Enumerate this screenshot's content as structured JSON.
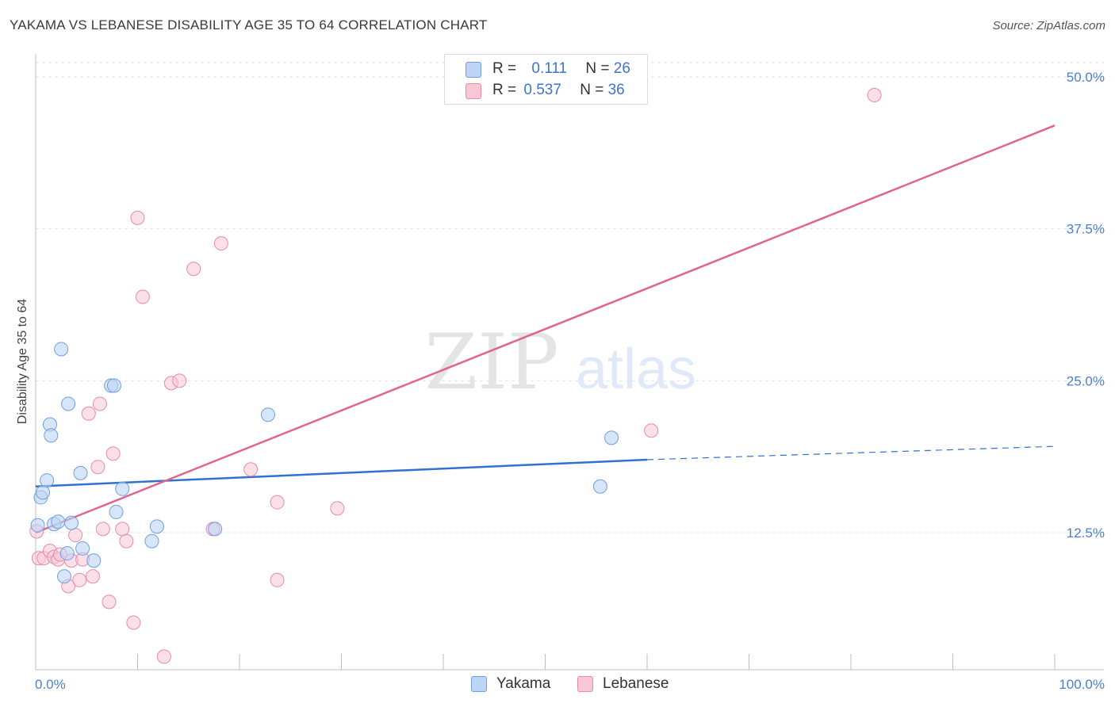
{
  "title": "YAKAMA VS LEBANESE DISABILITY AGE 35 TO 64 CORRELATION CHART",
  "source": "Source: ZipAtlas.com",
  "watermark": {
    "zip": "ZIP",
    "atlas": "atlas"
  },
  "legend": {
    "rows": [
      {
        "r_label": "R =",
        "r_value": "0.111",
        "n_label": "N =",
        "n_value": "26",
        "color": "#aecbf2"
      },
      {
        "r_label": "R =",
        "r_value": "0.537",
        "n_label": "N =",
        "n_value": "36",
        "color": "#f7b6cb"
      }
    ]
  },
  "bottom_legend": [
    {
      "label": "Yakama",
      "color": "#aecbf2"
    },
    {
      "label": "Lebanese",
      "color": "#f7b6cb"
    }
  ],
  "colors": {
    "yakama_fill": "#bcd4f5",
    "yakama_stroke": "#6f9fdf",
    "yakama_line": "#2f72d0",
    "lebanese_fill": "#f9c6d6",
    "lebanese_stroke": "#e88aa9",
    "lebanese_line": "#e0648c",
    "grid": "#e2e2e2",
    "tick_text": "#4a7fd0"
  },
  "chart_data": {
    "type": "scatter",
    "title": "YAKAMA VS LEBANESE DISABILITY AGE 35 TO 64 CORRELATION CHART",
    "xlabel": "",
    "ylabel": "Disability Age 35 to 64",
    "xlim": [
      0,
      100
    ],
    "ylim": [
      0,
      52
    ],
    "x_tick_labels": [
      "0.0%",
      "100.0%"
    ],
    "y_ticks": [
      12.5,
      25.0,
      37.5,
      50.0
    ],
    "y_tick_labels": [
      "12.5%",
      "25.0%",
      "37.5%",
      "50.0%"
    ],
    "series": [
      {
        "name": "Yakama",
        "R": 0.111,
        "N": 26,
        "points": [
          [
            0.2,
            13.1
          ],
          [
            0.5,
            15.4
          ],
          [
            0.7,
            15.8
          ],
          [
            1.1,
            16.8
          ],
          [
            1.4,
            21.4
          ],
          [
            1.5,
            20.5
          ],
          [
            1.8,
            13.2
          ],
          [
            2.2,
            13.4
          ],
          [
            2.5,
            27.6
          ],
          [
            2.8,
            8.9
          ],
          [
            3.1,
            10.8
          ],
          [
            3.2,
            23.1
          ],
          [
            3.5,
            13.3
          ],
          [
            4.4,
            17.4
          ],
          [
            4.6,
            11.2
          ],
          [
            5.7,
            10.2
          ],
          [
            7.4,
            24.6
          ],
          [
            7.7,
            24.6
          ],
          [
            7.9,
            14.2
          ],
          [
            8.5,
            16.1
          ],
          [
            11.4,
            11.8
          ],
          [
            11.9,
            13.0
          ],
          [
            17.6,
            12.8
          ],
          [
            22.8,
            22.2
          ],
          [
            55.4,
            16.3
          ],
          [
            56.5,
            20.3
          ]
        ],
        "trend": {
          "x0": 0,
          "y0": 16.3,
          "x1": 60,
          "y1": 18.5,
          "dashed_to_x": 100,
          "dashed_to_y": 19.6
        }
      },
      {
        "name": "Lebanese",
        "R": 0.537,
        "N": 36,
        "points": [
          [
            0.1,
            12.6
          ],
          [
            0.3,
            10.4
          ],
          [
            0.8,
            10.4
          ],
          [
            1.4,
            11.0
          ],
          [
            1.8,
            10.5
          ],
          [
            2.2,
            10.3
          ],
          [
            2.4,
            10.7
          ],
          [
            3.2,
            8.1
          ],
          [
            3.5,
            10.2
          ],
          [
            3.9,
            12.3
          ],
          [
            4.3,
            8.6
          ],
          [
            4.6,
            10.3
          ],
          [
            5.2,
            22.3
          ],
          [
            5.6,
            8.9
          ],
          [
            6.1,
            17.9
          ],
          [
            6.3,
            23.1
          ],
          [
            6.6,
            12.8
          ],
          [
            7.2,
            6.8
          ],
          [
            7.6,
            19.0
          ],
          [
            8.5,
            12.8
          ],
          [
            8.9,
            11.8
          ],
          [
            9.6,
            5.1
          ],
          [
            10.0,
            38.4
          ],
          [
            10.5,
            31.9
          ],
          [
            13.3,
            24.8
          ],
          [
            14.1,
            25.0
          ],
          [
            15.5,
            34.2
          ],
          [
            17.4,
            12.8
          ],
          [
            18.2,
            36.3
          ],
          [
            21.1,
            17.7
          ],
          [
            23.7,
            15.0
          ],
          [
            23.7,
            8.6
          ],
          [
            29.6,
            14.5
          ],
          [
            60.4,
            20.9
          ],
          [
            82.3,
            48.5
          ],
          [
            12.6,
            2.3
          ]
        ],
        "trend": {
          "x0": 0,
          "y0": 12.5,
          "x1": 100,
          "y1": 46.0
        }
      }
    ]
  }
}
